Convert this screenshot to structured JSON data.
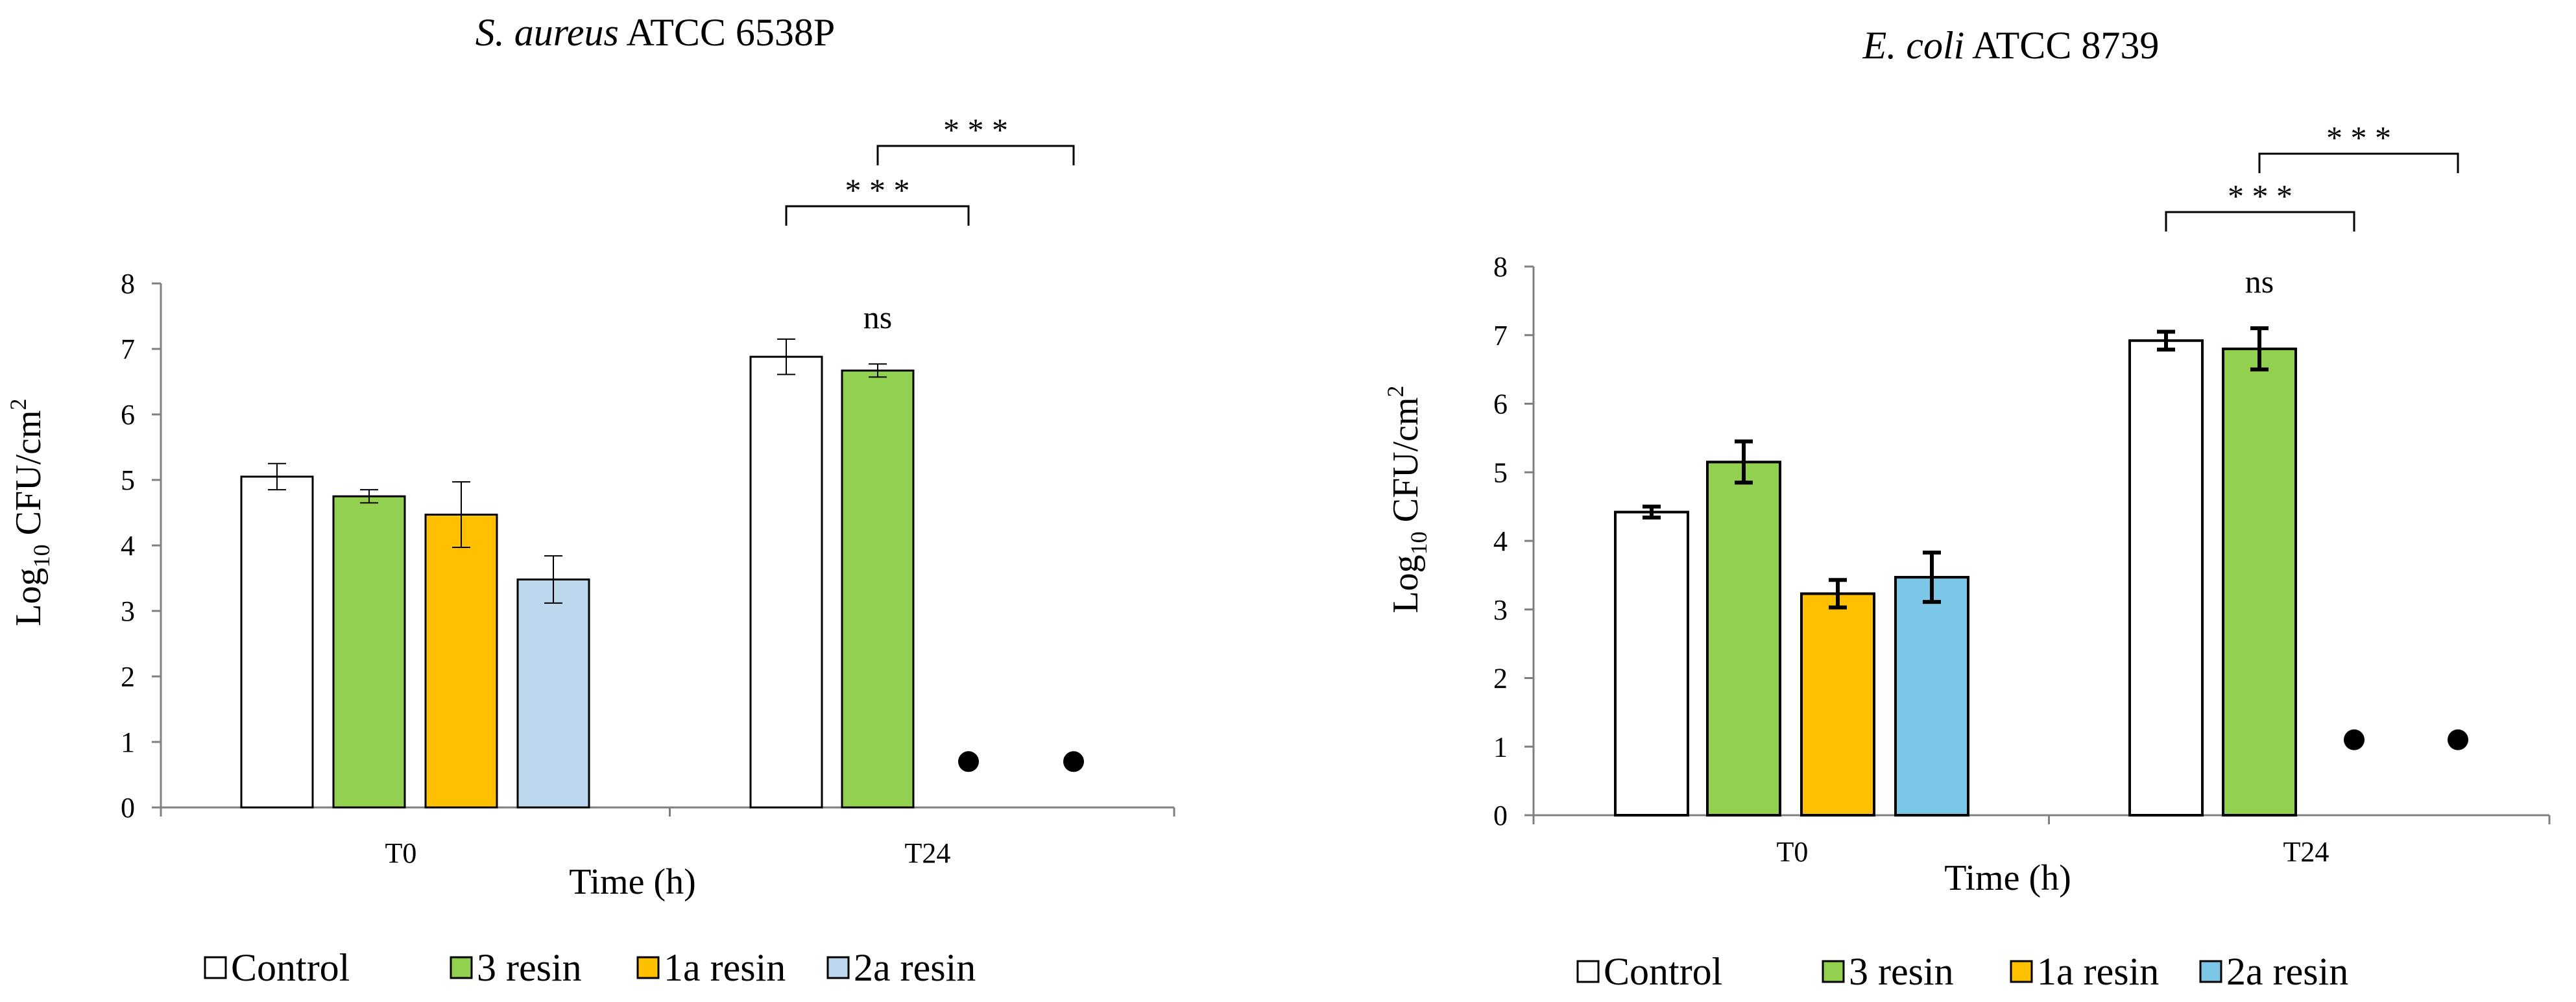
{
  "chart_data": [
    {
      "type": "bar",
      "title_italic": "S. aureus",
      "title_rest": " ATCC 6538P",
      "xlabel": "Time (h)",
      "ylabel_pre": "Log",
      "ylabel_sub": "10",
      "ylabel_mid": " CFU/cm",
      "ylabel_sup": "2",
      "ylim": [
        0,
        8
      ],
      "yticks": [
        "0",
        "1",
        "2",
        "3",
        "4",
        "5",
        "6",
        "7",
        "8"
      ],
      "categories": [
        "T0",
        "T24"
      ],
      "series": [
        {
          "name": "Control",
          "values": [
            5.05,
            6.88
          ],
          "errors": [
            0.2,
            0.27
          ]
        },
        {
          "name": "3 resin",
          "values": [
            4.75,
            6.67
          ],
          "errors": [
            0.1,
            0.1
          ]
        },
        {
          "name": "1a resin",
          "values": [
            4.47,
            0.7
          ],
          "errors": [
            0.5,
            0
          ],
          "dot": [
            false,
            true
          ]
        },
        {
          "name": "2a resin",
          "values": [
            3.48,
            0.7
          ],
          "errors": [
            0.36,
            0
          ],
          "dot": [
            false,
            true
          ]
        }
      ],
      "annotations": {
        "ns": "ns",
        "stars1": "* * *",
        "stars2": "* * *"
      }
    },
    {
      "type": "bar",
      "title_italic": "E. coli",
      "title_rest": "  ATCC 8739",
      "xlabel": "Time (h)",
      "ylabel_pre": "Log",
      "ylabel_sub": "10",
      "ylabel_mid": " CFU/cm",
      "ylabel_sup": "2",
      "ylim": [
        0,
        8
      ],
      "yticks": [
        "0",
        "1",
        "2",
        "3",
        "4",
        "5",
        "6",
        "7",
        "8"
      ],
      "categories": [
        "T0",
        "T24"
      ],
      "series": [
        {
          "name": "Control",
          "values": [
            4.42,
            6.92
          ],
          "errors": [
            0.08,
            0.13
          ]
        },
        {
          "name": "3 resin",
          "values": [
            5.15,
            6.8
          ],
          "errors": [
            0.3,
            0.3
          ]
        },
        {
          "name": "1a resin",
          "values": [
            3.23,
            1.1
          ],
          "errors": [
            0.2,
            0
          ],
          "dot": [
            false,
            true
          ]
        },
        {
          "name": "2a resin",
          "values": [
            3.47,
            1.1
          ],
          "errors": [
            0.36,
            0
          ],
          "dot": [
            false,
            true
          ]
        }
      ],
      "annotations": {
        "ns": "ns",
        "stars1": "* * *",
        "stars2": "* * *"
      }
    }
  ],
  "legend": {
    "left": [
      "Control",
      "3 resin",
      "1a resin",
      "2a resin"
    ],
    "right": [
      "Control",
      "3 resin",
      "1a resin",
      "2a resin"
    ]
  },
  "colors": {
    "left": [
      "#ffffff",
      "#92d050",
      "#ffc000",
      "#bdd7ee"
    ],
    "right": [
      "#ffffff",
      "#92d050",
      "#ffc000",
      "#7cc7e8"
    ]
  }
}
